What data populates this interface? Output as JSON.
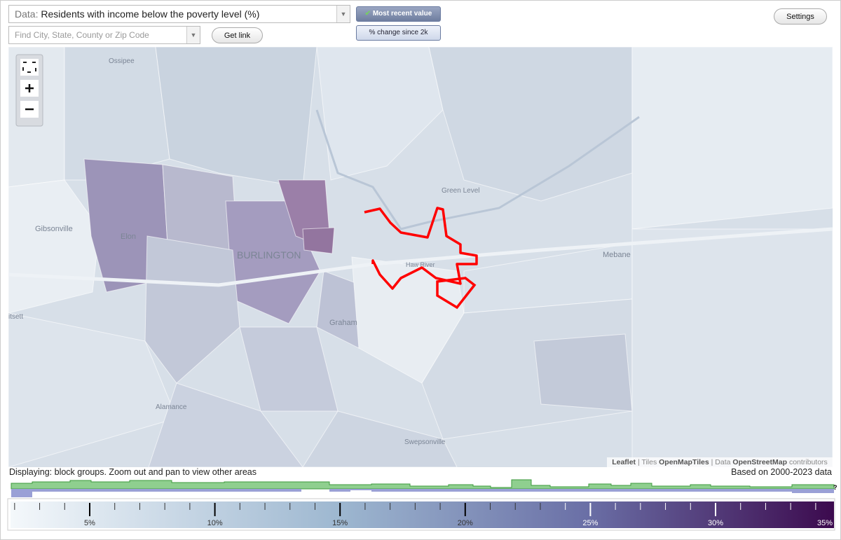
{
  "header": {
    "data_label": "Data:",
    "data_value": "Residents with income below the poverty level (%)",
    "search_placeholder": "Find City, State, County or Zip Code",
    "get_link": "Get link",
    "toggles": [
      "Most recent value",
      "% change since 2k"
    ],
    "settings": "Settings"
  },
  "map": {
    "places": [
      "Ossipee",
      "Gibsonville",
      "Elon",
      "BURLINGTON",
      "Green Level",
      "Mebane",
      "Graham",
      "Haw River",
      "Alamance",
      "Swepsonville",
      "itsett"
    ],
    "attribution": {
      "leaflet": "Leaflet",
      "sep": "|",
      "tiles_label": "Tiles",
      "tiles": "OpenMapTiles",
      "data_label": "Data",
      "data": "OpenStreetMap",
      "contributors": "contributors"
    }
  },
  "footer": {
    "displaying": "Displaying: block groups. Zoom out and pan to view other areas",
    "based_on": "Based on 2000-2023 data",
    "help": "?"
  },
  "legend": {
    "labels": [
      "5%",
      "10%",
      "15%",
      "20%",
      "25%",
      "30%",
      "35%"
    ]
  }
}
